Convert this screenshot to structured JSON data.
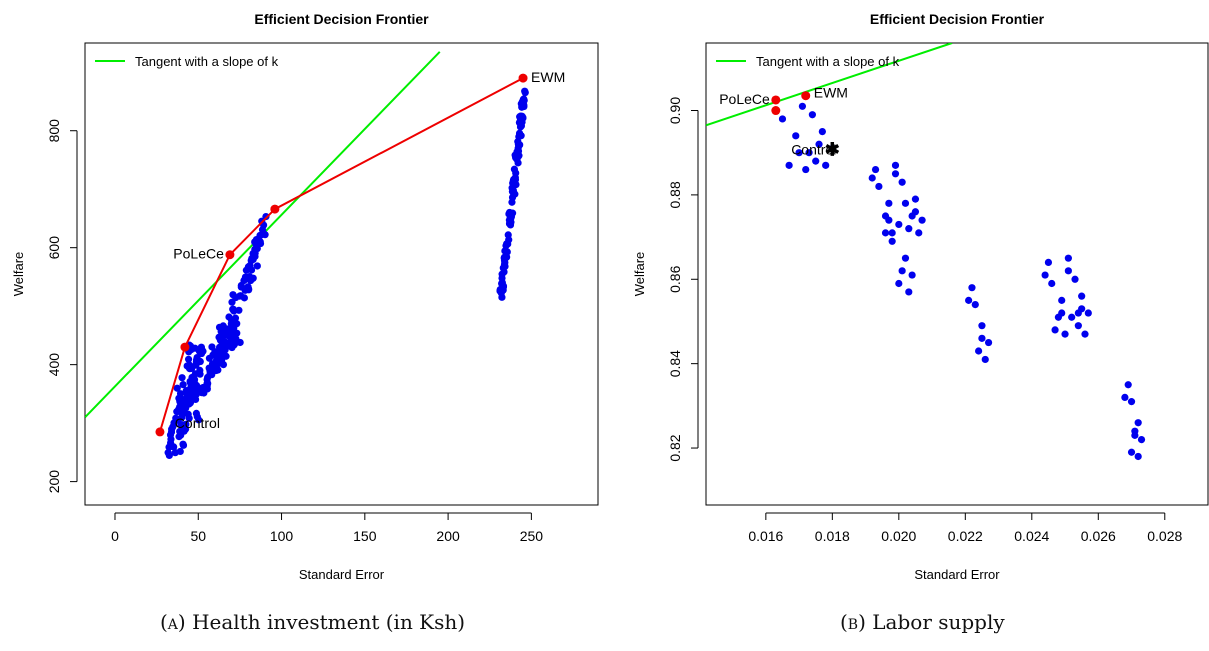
{
  "colors": {
    "points": "#0000ee",
    "highlight": "#ee0000",
    "frontier": "#ee0000",
    "tangent": "#00ee00",
    "axis": "#000000"
  },
  "chart_data": [
    {
      "type": "scatter",
      "title": "Efficient Decision Frontier",
      "xlabel": "Standard Error",
      "ylabel": "Welfare",
      "xlim": [
        -18,
        290
      ],
      "ylim": [
        160,
        950
      ],
      "xticks": [
        0,
        50,
        100,
        150,
        200,
        250
      ],
      "xtick_labels": [
        "0",
        "50",
        "100",
        "150",
        "200",
        "250"
      ],
      "yticks": [
        200,
        400,
        600,
        800
      ],
      "ytick_labels": [
        "200",
        "400",
        "600",
        "800"
      ],
      "legend": {
        "position": "top-left",
        "label": "Tangent with a slope of k"
      },
      "caption_tag": "(a)",
      "caption_text": " Health investment (in Ksh)",
      "series": [
        {
          "name": "",
          "cluster_groups": [
            {
              "x0": 35,
              "y0": 260,
              "x1": 50,
              "y1": 430,
              "n": 90,
              "xjit": 10,
              "yjit": 40
            },
            {
              "x0": 45,
              "y0": 320,
              "x1": 72,
              "y1": 470,
              "n": 90,
              "xjit": 10,
              "yjit": 55
            },
            {
              "x0": 60,
              "y0": 400,
              "x1": 90,
              "y1": 640,
              "n": 70,
              "xjit": 6,
              "yjit": 45
            },
            {
              "x0": 232,
              "y0": 520,
              "x1": 246,
              "y1": 870,
              "n": 110,
              "xjit": 2,
              "yjit": 20
            }
          ]
        }
      ],
      "tangent": {
        "x1": -18,
        "y1": 310,
        "x2": 195,
        "y2": 935
      },
      "frontier": {
        "x": [
          27,
          42,
          69,
          96,
          245
        ],
        "y": [
          285,
          430,
          588,
          666,
          890
        ]
      },
      "highlights": [
        {
          "x": 27,
          "y": 285,
          "label": "Control",
          "anchor": "end",
          "dx": 60,
          "dy": -4
        },
        {
          "x": 42,
          "y": 430,
          "label": "",
          "anchor": "start",
          "dx": 0,
          "dy": 0
        },
        {
          "x": 69,
          "y": 588,
          "label": "PoLeCe",
          "anchor": "end",
          "dx": -6,
          "dy": 4
        },
        {
          "x": 96,
          "y": 666,
          "label": "",
          "anchor": "start",
          "dx": 0,
          "dy": 0
        },
        {
          "x": 245,
          "y": 890,
          "label": "EWM",
          "anchor": "start",
          "dx": 8,
          "dy": 4
        }
      ]
    },
    {
      "type": "scatter",
      "title": "Efficient Decision Frontier",
      "xlabel": "Standard Error",
      "ylabel": "Welfare",
      "xlim": [
        0.0142,
        0.0293
      ],
      "ylim": [
        0.8065,
        0.916
      ],
      "xticks": [
        0.016,
        0.018,
        0.02,
        0.022,
        0.024,
        0.026,
        0.028
      ],
      "xtick_labels": [
        "0.016",
        "0.018",
        "0.020",
        "0.022",
        "0.024",
        "0.026",
        "0.028"
      ],
      "yticks": [
        0.82,
        0.84,
        0.86,
        0.88,
        0.9
      ],
      "ytick_labels": [
        "0.82",
        "0.84",
        "0.86",
        "0.88",
        "0.90"
      ],
      "legend": {
        "position": "top-left",
        "label": "Tangent with a slope of k"
      },
      "caption_tag": "(b)",
      "caption_text": " Labor supply",
      "series": [
        {
          "name": "",
          "points": [
            [
              0.0165,
              0.898
            ],
            [
              0.0167,
              0.887
            ],
            [
              0.0169,
              0.894
            ],
            [
              0.017,
              0.89
            ],
            [
              0.0171,
              0.901
            ],
            [
              0.0172,
              0.886
            ],
            [
              0.0173,
              0.89
            ],
            [
              0.0174,
              0.899
            ],
            [
              0.0175,
              0.888
            ],
            [
              0.0176,
              0.892
            ],
            [
              0.0177,
              0.895
            ],
            [
              0.0178,
              0.887
            ],
            [
              0.018,
              0.891
            ],
            [
              0.0192,
              0.884
            ],
            [
              0.0193,
              0.886
            ],
            [
              0.0194,
              0.882
            ],
            [
              0.0196,
              0.871
            ],
            [
              0.0197,
              0.874
            ],
            [
              0.0197,
              0.878
            ],
            [
              0.0198,
              0.869
            ],
            [
              0.0199,
              0.885
            ],
            [
              0.0199,
              0.887
            ],
            [
              0.02,
              0.873
            ],
            [
              0.02,
              0.859
            ],
            [
              0.0201,
              0.862
            ],
            [
              0.0201,
              0.883
            ],
            [
              0.0202,
              0.865
            ],
            [
              0.0202,
              0.878
            ],
            [
              0.0203,
              0.872
            ],
            [
              0.0203,
              0.857
            ],
            [
              0.0204,
              0.875
            ],
            [
              0.0204,
              0.861
            ],
            [
              0.0205,
              0.876
            ],
            [
              0.0205,
              0.879
            ],
            [
              0.0206,
              0.871
            ],
            [
              0.0207,
              0.874
            ],
            [
              0.0196,
              0.875
            ],
            [
              0.0198,
              0.871
            ],
            [
              0.0221,
              0.855
            ],
            [
              0.0222,
              0.858
            ],
            [
              0.0223,
              0.854
            ],
            [
              0.0224,
              0.843
            ],
            [
              0.0225,
              0.846
            ],
            [
              0.0225,
              0.849
            ],
            [
              0.0226,
              0.841
            ],
            [
              0.0227,
              0.845
            ],
            [
              0.0244,
              0.861
            ],
            [
              0.0245,
              0.864
            ],
            [
              0.0246,
              0.859
            ],
            [
              0.0247,
              0.848
            ],
            [
              0.0248,
              0.851
            ],
            [
              0.0249,
              0.852
            ],
            [
              0.0249,
              0.855
            ],
            [
              0.025,
              0.847
            ],
            [
              0.0251,
              0.862
            ],
            [
              0.0251,
              0.865
            ],
            [
              0.0252,
              0.851
            ],
            [
              0.0253,
              0.86
            ],
            [
              0.0254,
              0.849
            ],
            [
              0.0254,
              0.852
            ],
            [
              0.0255,
              0.853
            ],
            [
              0.0255,
              0.856
            ],
            [
              0.0256,
              0.847
            ],
            [
              0.0257,
              0.852
            ],
            [
              0.0268,
              0.832
            ],
            [
              0.0269,
              0.835
            ],
            [
              0.027,
              0.831
            ],
            [
              0.027,
              0.819
            ],
            [
              0.0271,
              0.823
            ],
            [
              0.0271,
              0.824
            ],
            [
              0.0272,
              0.826
            ],
            [
              0.0272,
              0.818
            ],
            [
              0.0273,
              0.822
            ]
          ]
        }
      ],
      "tangent": {
        "x1": 0.0142,
        "y1": 0.8965,
        "x2": 0.0216,
        "y2": 0.916
      },
      "frontier": {
        "x": [],
        "y": []
      },
      "highlights": [
        {
          "x": 0.0163,
          "y": 0.9,
          "label": "",
          "anchor": "start",
          "dx": 0,
          "dy": 0
        },
        {
          "x": 0.0163,
          "y": 0.9025,
          "label": "PoLeCe",
          "anchor": "end",
          "dx": -6,
          "dy": 4
        },
        {
          "x": 0.0172,
          "y": 0.9035,
          "label": "EWM",
          "anchor": "start",
          "dx": 8,
          "dy": 2
        }
      ],
      "stars": [
        {
          "x": 0.018,
          "y": 0.8908,
          "label": "Control",
          "anchor": "end",
          "dx": 4,
          "dy": 5
        }
      ]
    }
  ]
}
